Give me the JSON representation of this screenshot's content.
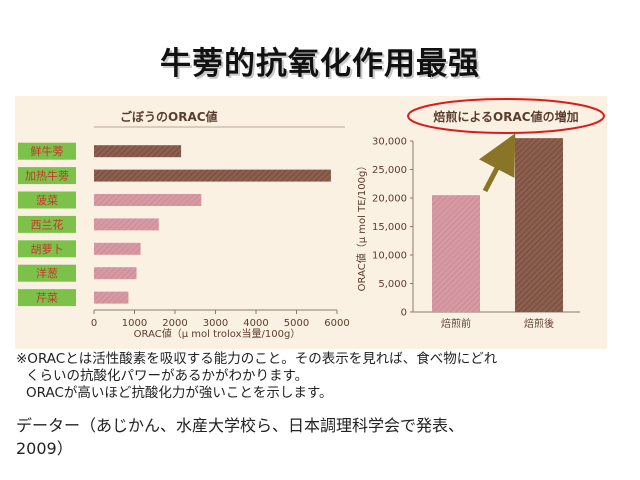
{
  "slide": {
    "title": "牛蒡的抗氧化作用最强"
  },
  "chart_data": [
    {
      "type": "bar",
      "orientation": "horizontal",
      "title": "ごぼうのORAC値",
      "xlabel": "ORAC値（μ mol trolox当量/100g）",
      "ylabel": "",
      "categories": [
        "鲜牛蒡",
        "加热牛蒡",
        "菠菜",
        "西兰花",
        "胡萝卜",
        "洋葱",
        "芹菜"
      ],
      "values": [
        2150,
        5850,
        2650,
        1600,
        1150,
        1050,
        850
      ],
      "xlim": [
        0,
        6000
      ],
      "xticks": [
        "0",
        "1000",
        "2000",
        "3000",
        "4000",
        "5000",
        "6000"
      ],
      "grid": false,
      "legend": "none",
      "colors": {
        "burdock": "#8b5e4e",
        "vegetables": "#d79aa5",
        "label_bg": "#7cc24a",
        "label_fg": "#c0392b"
      }
    },
    {
      "type": "bar",
      "title": "焙煎によるORAC値の増加",
      "xlabel": "",
      "ylabel": "ORAC値（μ mol TE/100g）",
      "categories": [
        "焙煎前",
        "焙煎後"
      ],
      "values": [
        20500,
        30500
      ],
      "ylim": [
        0,
        30000
      ],
      "yticks": [
        "0",
        "5,000",
        "10,000",
        "15,000",
        "20,000",
        "25,000",
        "30,000"
      ],
      "grid": false,
      "legend": "none",
      "annotations": [
        "red ellipse around title",
        "arrow pointing to 焙煎後 bar"
      ],
      "colors": {
        "before": "#d79aa5",
        "after": "#8b5e4e",
        "ellipse": "#d91c1c",
        "arrow": "#8a7428"
      }
    }
  ],
  "notes": [
    "※ORACとは活性酸素を吸収する能力のこと。その表示を見れば、食べ物にどれ",
    "くらいの抗酸化パワーがあるかがわかります。",
    "ORACが高いほど抗酸化力が強いことを示します。"
  ],
  "source": {
    "line1": "データー（あじかん、水産大学校ら、日本調理科学会で発表、",
    "line2": "2009）"
  }
}
